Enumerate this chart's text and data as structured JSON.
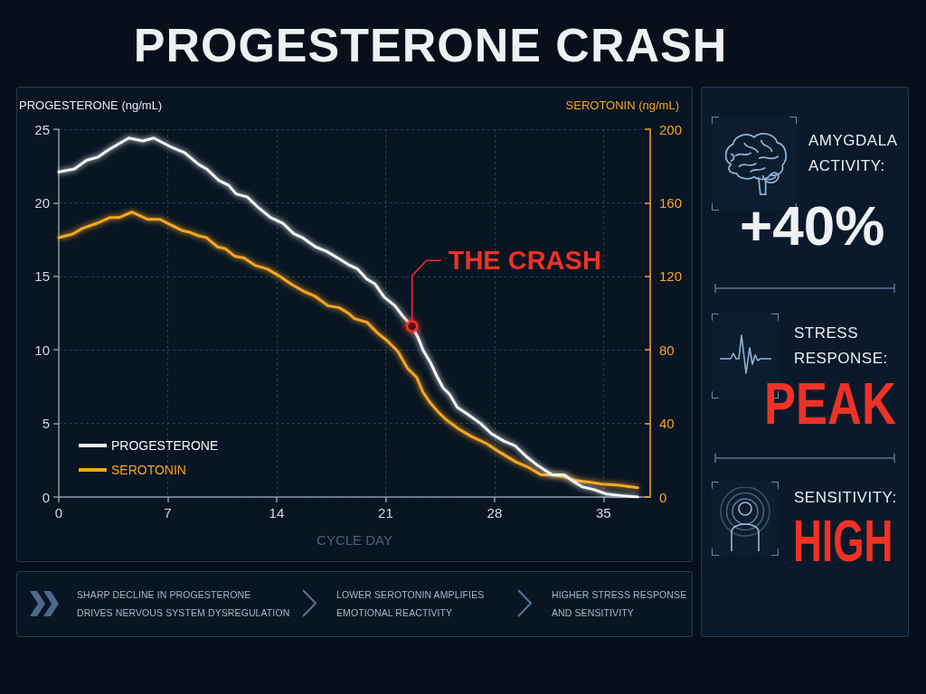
{
  "chart_data": [
    {
      "type": "line",
      "title": "PROGESTERONE CRASH",
      "xlabel": "CYCLE DAY",
      "ylabel": "PROGESTERONE (ng/mL)",
      "y2label": "SEROTONIN (ng/mL)",
      "xlim": [
        0,
        38
      ],
      "xticks": [
        0,
        7,
        14,
        21,
        28,
        35
      ],
      "ylim": [
        0,
        25
      ],
      "yticks": [
        0,
        5,
        10,
        15,
        20,
        25
      ],
      "y2lim": [
        0,
        200
      ],
      "y2ticks": [
        0,
        40,
        80,
        120,
        160,
        200
      ],
      "grid": true,
      "legend": "bottom left",
      "series": [
        {
          "name": "PROGESTERONE",
          "color": "#f4f6f8",
          "x": [
            0,
            1.0,
            1.8,
            2.5,
            3.2,
            4.5,
            5.4,
            6.1,
            7.2,
            8.1,
            9.0,
            9.5,
            10.3,
            10.9,
            11.4,
            12.1,
            12.8,
            13.6,
            14.4,
            15.1,
            15.7,
            16.5,
            17.2,
            18.0,
            18.6,
            19.2,
            19.8,
            20.3,
            20.9,
            21.6,
            22.1,
            22.7,
            23.1,
            23.4,
            23.9,
            24.3,
            24.7,
            25.1,
            25.6,
            26.3,
            27.1,
            27.8,
            28.6,
            29.3,
            30.1,
            30.7,
            31.7,
            32.5,
            33.0,
            33.6,
            34.4,
            35.2,
            36.1,
            37.2
          ],
          "values": [
            22.1,
            22.3,
            22.9,
            23.1,
            23.6,
            24.4,
            24.2,
            24.4,
            23.8,
            23.4,
            22.6,
            22.3,
            21.5,
            21.2,
            20.6,
            20.4,
            19.7,
            19.0,
            18.6,
            17.9,
            17.6,
            17.0,
            16.7,
            16.2,
            15.8,
            15.5,
            14.8,
            14.5,
            13.6,
            13.0,
            12.3,
            11.6,
            10.8,
            10.0,
            9.1,
            8.2,
            7.4,
            7.0,
            6.1,
            5.6,
            5.0,
            4.3,
            3.8,
            3.5,
            2.7,
            2.2,
            1.5,
            1.5,
            1.1,
            0.7,
            0.5,
            0.2,
            0.1,
            0.0
          ]
        },
        {
          "name": "SEROTONIN",
          "color": "#f5a623",
          "axis": "y2",
          "x": [
            0,
            0.9,
            1.5,
            2.5,
            3.3,
            3.9,
            4.7,
            5.7,
            6.5,
            7.2,
            7.9,
            8.4,
            9.0,
            9.5,
            10.2,
            10.7,
            11.3,
            11.9,
            12.6,
            13.4,
            14.2,
            14.9,
            15.7,
            16.5,
            17.3,
            18.0,
            18.6,
            19.0,
            19.8,
            20.5,
            21.1,
            21.8,
            22.4,
            23.0,
            23.4,
            23.8,
            24.4,
            24.9,
            25.7,
            26.5,
            27.5,
            28.4,
            29.4,
            30.2,
            31.0,
            31.7,
            32.5,
            33.2,
            34.2,
            34.9,
            35.9,
            37.2
          ],
          "values": [
            141,
            143,
            146,
            149,
            152,
            152,
            155,
            151,
            151,
            148,
            145,
            144,
            142,
            141,
            136,
            135,
            131,
            130,
            126,
            124,
            120,
            116,
            112,
            109,
            104,
            103,
            100,
            97,
            95,
            89,
            85,
            79,
            70,
            65,
            57,
            52,
            46,
            42,
            37,
            33,
            29,
            24,
            19,
            16,
            12,
            12,
            11,
            9,
            8,
            7,
            6.5,
            5
          ]
        }
      ],
      "annotations": [
        {
          "text": "THE CRASH",
          "x": 22.7,
          "y": 11.6
        },
        "SHARP DECLINE IN PROGESTERONE\nDRIVES NERVOUS SYSTEM DYSREGULATION",
        "LOWER SEROTONIN AMPLIFIES\nEMOTIONAL REACTIVITY",
        "HIGHER STRESS RESPONSE\nAND SENSITIVITY"
      ]
    },
    {
      "type": "other",
      "annotations": [
        "AMYGDALA\nACTIVITY:",
        "+40%",
        "STRESS\nRESPONSE:",
        "PEAK",
        "SENSITIVITY:",
        "HIGH"
      ]
    }
  ]
}
